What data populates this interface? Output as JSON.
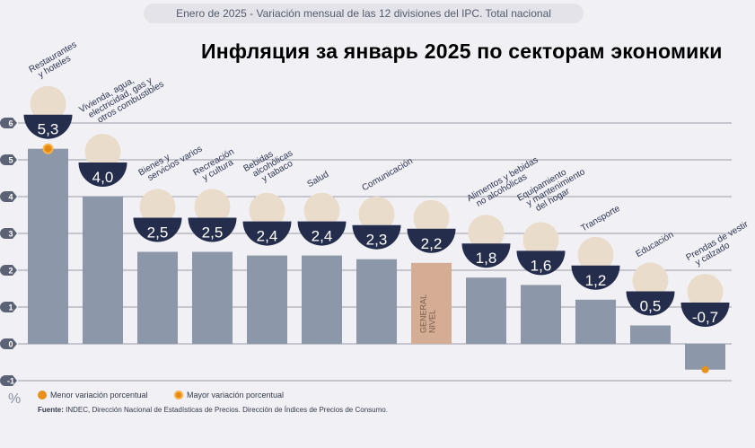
{
  "subtitle": "Enero de 2025 - Variación mensual de las 12 divisiones del IPC. Total nacional",
  "overlay_title": "Инфляция за январь 2025  по секторам экономики",
  "chart_data": {
    "type": "bar",
    "title": "Enero de 2025 - Variación mensual de las 12 divisiones del IPC. Total nacional",
    "ylabel": "%",
    "ylim": [
      -1,
      6
    ],
    "yticks": [
      -1,
      0,
      1,
      2,
      3,
      4,
      5,
      6
    ],
    "grid": true,
    "categories": [
      [
        "Restaurantes",
        "y hoteles"
      ],
      [
        "Vivienda, agua,",
        "electricidad, gas y",
        "otros combustibles"
      ],
      [
        "Bienes y",
        "servicios varios"
      ],
      [
        "Recreación",
        "y cultura"
      ],
      [
        "Bebidas",
        "alcohólicas",
        "y tabaco"
      ],
      [
        "Salud"
      ],
      [
        "Comunicación"
      ],
      [
        "NIVEL",
        "GENERAL"
      ],
      [
        "Alimentos y bebidas",
        "no alcohólicas"
      ],
      [
        "Equipamiento",
        "y mantenimiento",
        "del hogar"
      ],
      [
        "Transporte"
      ],
      [
        "Educación"
      ],
      [
        "Prendas de vestir",
        "y calzado"
      ]
    ],
    "values": [
      5.3,
      4.0,
      2.5,
      2.5,
      2.4,
      2.4,
      2.3,
      2.2,
      1.8,
      1.6,
      1.2,
      0.5,
      -0.7
    ],
    "value_labels": [
      "5,3",
      "4,0",
      "2,5",
      "2,5",
      "2,4",
      "2,4",
      "2,3",
      "2,2",
      "1,8",
      "1,6",
      "1,2",
      "0,5",
      "-0,7"
    ],
    "highlight_index": 7,
    "max_index": 0,
    "min_index": 12,
    "legend": [
      {
        "label": "Menor variación porcentual",
        "marker": "dot"
      },
      {
        "label": "Mayor variación porcentual",
        "marker": "ring-dot"
      }
    ],
    "colors": {
      "bar": "#8d97aa",
      "general": "#d5ad95",
      "badge": "#252d4d",
      "accent": "#e8901a",
      "grid": "#9a9ca6"
    }
  },
  "source_label": "Fuente:",
  "source_text": " INDEC, Dirección Nacional de Estadísticas de Precios. Dirección de Índices de Precios de Consumo."
}
